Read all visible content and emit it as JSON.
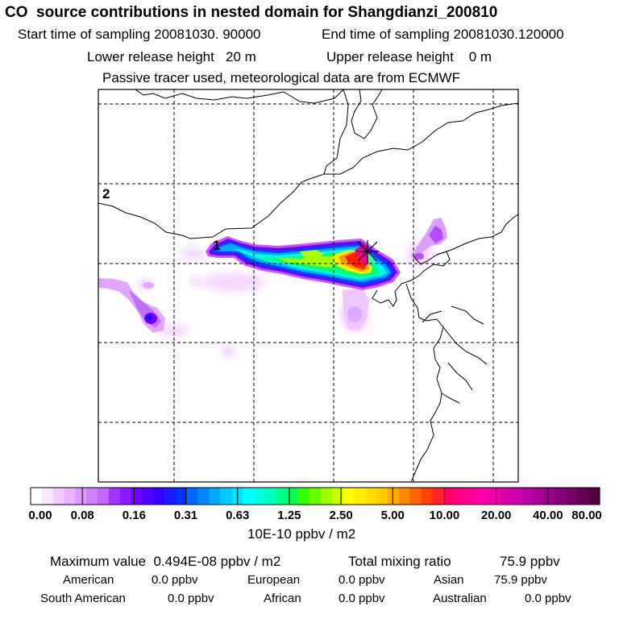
{
  "header": {
    "title": "CO  source contributions in nested domain for Shangdianzi_200810",
    "start_time": "Start time of sampling 20081030. 90000",
    "end_time": "End time of sampling 20081030.120000",
    "lower_release": "Lower release height   20 m",
    "upper_release": "Upper release height    0 m",
    "note": "Passive tracer used, meteorological data are from ECMWF"
  },
  "map": {
    "label_1": "1",
    "label_2": "2",
    "frame_color": "#000000",
    "grid_style": "dashed",
    "receptor_marker": "star-cross",
    "plume_palette": [
      "#cc44ff",
      "#7a00ff",
      "#0000ff",
      "#00aaff",
      "#00ffee",
      "#00ff44",
      "#aaff00",
      "#ffee00",
      "#ffaa00",
      "#ff3300",
      "#ff0099"
    ]
  },
  "colorbar": {
    "ticks": [
      "0.00",
      "0.08",
      "0.16",
      "0.31",
      "0.63",
      "1.25",
      "2.50",
      "5.00",
      "10.00",
      "20.00",
      "40.00",
      "80.00"
    ],
    "unit": "10E-10 ppbv / m2",
    "colors": [
      "#ffffff",
      "#fbe6ff",
      "#f4ccff",
      "#e9b3ff",
      "#dc99ff",
      "#cf80ff",
      "#c266ff",
      "#a333ff",
      "#8a1aff",
      "#7000ff",
      "#5500ff",
      "#3300ff",
      "#1a1aff",
      "#0033ff",
      "#0066ff",
      "#0088ff",
      "#00aaff",
      "#00ccff",
      "#00e5ff",
      "#00ffff",
      "#00ffdd",
      "#00ffbb",
      "#00ff88",
      "#00ff55",
      "#33ff00",
      "#66ff00",
      "#99ff00",
      "#ccff00",
      "#ffff00",
      "#ffee00",
      "#ffdd00",
      "#ffcc00",
      "#ffaa00",
      "#ff8800",
      "#ff6600",
      "#ff4400",
      "#ff2222",
      "#ff0066",
      "#ff0088",
      "#ff0099",
      "#ff00aa",
      "#ee00aa",
      "#dd00aa",
      "#cc00aa",
      "#bb00aa",
      "#aa0099",
      "#990088",
      "#880077",
      "#770066",
      "#660055",
      "#550044"
    ]
  },
  "footer": {
    "max_value": "Maximum value  0.494E-08 ppbv / m2",
    "total_mixing": "Total mixing ratio",
    "total_value": "75.9 ppbv",
    "american_label": "American",
    "american_value": "0.0 ppbv",
    "european_label": "European",
    "european_value": "0.0 ppbv",
    "asian_label": "Asian",
    "asian_value": "75.9 ppbv",
    "south_american_label": "South American",
    "south_american_value": "0.0 ppbv",
    "african_label": "African",
    "african_value": "0.0 ppbv",
    "australian_label": "Australian",
    "australian_value": "0.0 ppbv"
  }
}
